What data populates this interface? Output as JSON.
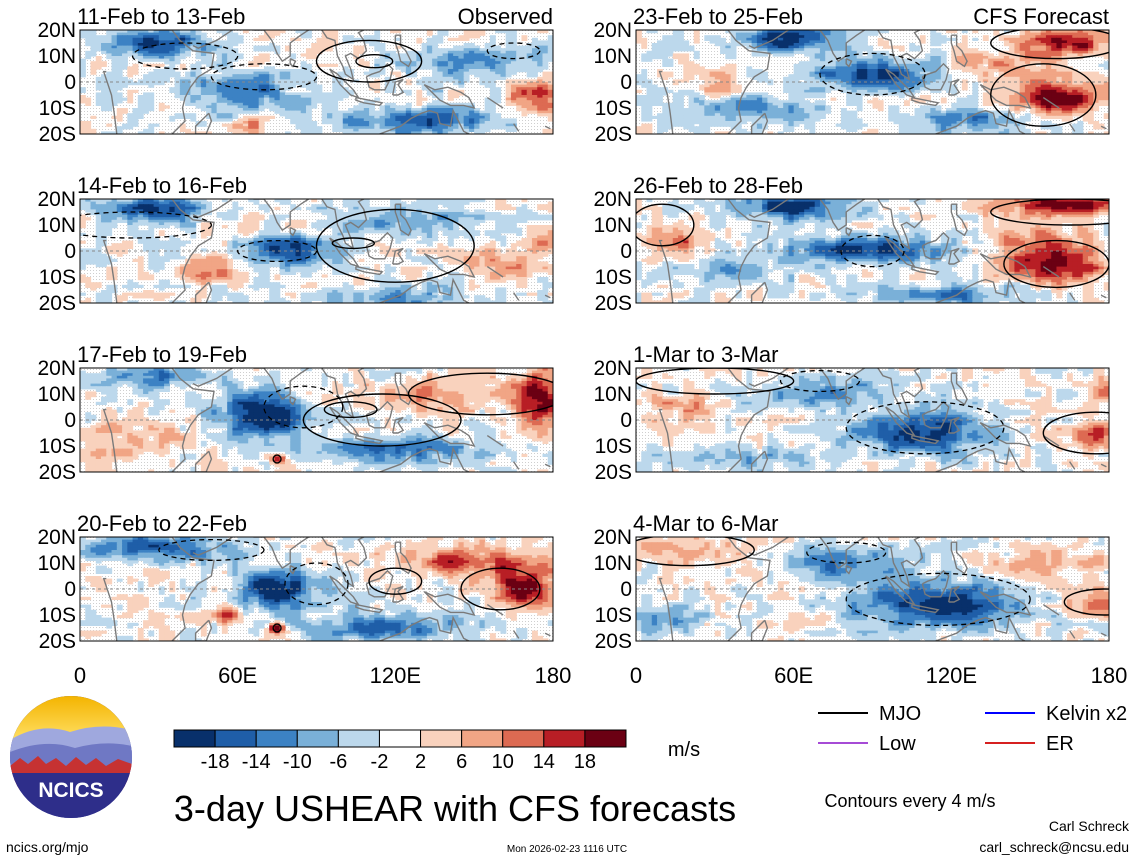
{
  "chart_data": {
    "type": "heatmap",
    "title": "3-day USHEAR with CFS forecasts",
    "variable": "USHEAR",
    "units": "m/s",
    "lon_range": [
      0,
      180
    ],
    "lat_range": [
      -20,
      20
    ],
    "x_ticks": [
      "0",
      "60E",
      "120E",
      "180"
    ],
    "y_ticks": [
      "20N",
      "10N",
      "0",
      "10S",
      "20S"
    ],
    "colorbar": {
      "levels": [
        "-18",
        "-14",
        "-10",
        "-6",
        "-2",
        "2",
        "6",
        "10",
        "14",
        "18"
      ],
      "colors": [
        "#08306b",
        "#1f5ea8",
        "#3c82c4",
        "#7ab0d8",
        "#bcd8ec",
        "#ffffff",
        "#f9d2bd",
        "#f1a585",
        "#dd6a52",
        "#b81e25",
        "#6b0013"
      ]
    },
    "columns": [
      {
        "label": "Observed",
        "panels": [
          {
            "period": "11-Feb to 13-Feb",
            "seed": 11,
            "anomalies": [
              [
                30,
                15,
                -1.4,
                18,
                5
              ],
              [
                60,
                -3,
                -0.9,
                25,
                8
              ],
              [
                130,
                -15,
                -1.1,
                30,
                5
              ],
              [
                175,
                -5,
                1.3,
                10,
                6
              ],
              [
                65,
                -17,
                0.9,
                6,
                3
              ],
              [
                150,
                8,
                -0.7,
                30,
                7
              ]
            ],
            "mjo": [
              [
                110,
                8,
                20,
                8
              ],
              [
                112,
                8,
                7,
                2.5
              ]
            ],
            "dashed": [
              [
                70,
                2,
                20,
                5
              ],
              [
                40,
                10,
                20,
                5
              ],
              [
                165,
                12,
                10,
                3
              ]
            ]
          },
          {
            "period": "14-Feb to 16-Feb",
            "seed": 17,
            "anomalies": [
              [
                30,
                16,
                -1.2,
                20,
                5
              ],
              [
                80,
                0,
                -1.3,
                15,
                6
              ],
              [
                50,
                -7,
                0.9,
                10,
                5
              ],
              [
                125,
                12,
                -0.8,
                25,
                6
              ],
              [
                175,
                3,
                0.7,
                8,
                5
              ],
              [
                160,
                -5,
                0.6,
                15,
                5
              ],
              [
                120,
                -18,
                -0.7,
                30,
                4
              ]
            ],
            "mjo": [
              [
                120,
                2,
                30,
                14
              ],
              [
                104,
                3,
                8,
                2
              ]
            ],
            "dashed": [
              [
                75,
                0,
                15,
                4
              ],
              [
                20,
                10,
                30,
                5
              ]
            ]
          },
          {
            "period": "17-Feb to 19-Feb",
            "seed": 23,
            "anomalies": [
              [
                70,
                2,
                -1.9,
                15,
                8
              ],
              [
                30,
                17,
                -1.0,
                20,
                4
              ],
              [
                175,
                8,
                1.4,
                8,
                12
              ],
              [
                120,
                -12,
                -0.9,
                35,
                5
              ],
              [
                140,
                10,
                0.7,
                30,
                6
              ],
              [
                75,
                -15,
                1.6,
                3,
                2
              ],
              [
                20,
                -8,
                0.5,
                20,
                7
              ]
            ],
            "mjo": [
              [
                155,
                10,
                30,
                8
              ],
              [
                115,
                0,
                30,
                10
              ],
              [
                103,
                4,
                10,
                3
              ],
              [
                75,
                -15,
                1.5,
                1.5
              ]
            ],
            "dashed": [
              [
                85,
                5,
                15,
                8
              ]
            ]
          },
          {
            "period": "20-Feb to 22-Feb",
            "seed": 31,
            "anomalies": [
              [
                75,
                0,
                -1.6,
                15,
                8
              ],
              [
                30,
                16,
                -1.2,
                25,
                5
              ],
              [
                170,
                0,
                1.5,
                12,
                6
              ],
              [
                150,
                10,
                1.0,
                25,
                6
              ],
              [
                120,
                -15,
                -1.0,
                30,
                5
              ],
              [
                55,
                -10,
                1.1,
                7,
                3
              ],
              [
                75,
                -15,
                1.6,
                3,
                2
              ]
            ],
            "mjo": [
              [
                160,
                0,
                15,
                8
              ],
              [
                120,
                3,
                10,
                5
              ],
              [
                75,
                -15,
                1.5,
                1.5
              ]
            ],
            "dashed": [
              [
                90,
                2,
                12,
                8
              ],
              [
                50,
                15,
                20,
                4
              ]
            ]
          }
        ]
      },
      {
        "label": "CFS Forecast",
        "panels": [
          {
            "period": "23-Feb to 25-Feb",
            "seed": 41,
            "anomalies": [
              [
                60,
                17,
                -1.7,
                15,
                5
              ],
              [
                90,
                3,
                -1.3,
                25,
                6
              ],
              [
                160,
                -6,
                1.6,
                18,
                6
              ],
              [
                165,
                15,
                1.3,
                15,
                5
              ],
              [
                40,
                -10,
                -0.8,
                30,
                6
              ],
              [
                125,
                -15,
                -0.8,
                25,
                5
              ],
              [
                30,
                -2,
                0.6,
                10,
                5
              ],
              [
                140,
                8,
                0.6,
                15,
                6
              ]
            ],
            "mjo": [
              [
                155,
                -5,
                20,
                12
              ],
              [
                160,
                15,
                25,
                6
              ]
            ],
            "dashed": [
              [
                90,
                3,
                20,
                8
              ]
            ]
          },
          {
            "period": "26-Feb to 28-Feb",
            "seed": 47,
            "anomalies": [
              [
                60,
                17,
                -1.5,
                20,
                5
              ],
              [
                90,
                0,
                -1.3,
                30,
                5
              ],
              [
                160,
                -5,
                1.5,
                18,
                7
              ],
              [
                165,
                18,
                1.6,
                20,
                4
              ],
              [
                15,
                5,
                0.9,
                10,
                6
              ],
              [
                150,
                5,
                0.5,
                20,
                8
              ],
              [
                120,
                -17,
                -0.8,
                30,
                4
              ],
              [
                40,
                -8,
                -0.6,
                20,
                5
              ]
            ],
            "mjo": [
              [
                160,
                -5,
                20,
                9
              ],
              [
                165,
                15,
                30,
                5
              ],
              [
                10,
                10,
                12,
                8
              ]
            ],
            "dashed": [
              [
                90,
                0,
                12,
                6
              ]
            ]
          },
          {
            "period": "1-Mar to 3-Mar",
            "seed": 53,
            "anomalies": [
              [
                110,
                -5,
                -1.4,
                25,
                8
              ],
              [
                70,
                10,
                -0.9,
                25,
                6
              ],
              [
                175,
                -5,
                1.2,
                10,
                5
              ],
              [
                178,
                12,
                1.0,
                5,
                5
              ],
              [
                40,
                -15,
                -0.6,
                25,
                4
              ],
              [
                20,
                5,
                0.5,
                15,
                6
              ]
            ],
            "mjo": [
              [
                175,
                -5,
                20,
                8
              ],
              [
                30,
                15,
                30,
                5
              ]
            ],
            "dashed": [
              [
                110,
                -3,
                30,
                10
              ],
              [
                70,
                15,
                15,
                4
              ]
            ]
          },
          {
            "period": "4-Mar to 6-Mar",
            "seed": 59,
            "anomalies": [
              [
                115,
                -6,
                -1.6,
                30,
                8
              ],
              [
                80,
                10,
                -0.9,
                25,
                7
              ],
              [
                175,
                -5,
                0.9,
                10,
                5
              ],
              [
                20,
                15,
                0.6,
                20,
                5
              ],
              [
                10,
                -12,
                -0.6,
                15,
                5
              ],
              [
                160,
                10,
                0.5,
                20,
                6
              ]
            ],
            "mjo": [
              [
                178,
                -5,
                15,
                5
              ],
              [
                20,
                15,
                25,
                6
              ]
            ],
            "dashed": [
              [
                115,
                -4,
                35,
                10
              ],
              [
                80,
                14,
                15,
                4
              ]
            ]
          }
        ]
      }
    ]
  },
  "logo": {
    "text": "NCICS"
  },
  "legend": {
    "entries": [
      {
        "label": "MJO",
        "color": "#000000"
      },
      {
        "label": "Kelvin x2",
        "color": "#0000ff"
      },
      {
        "label": "Low",
        "color": "#a64bd6"
      },
      {
        "label": "ER",
        "color": "#d62020"
      }
    ],
    "note": "Contours every 4 m/s"
  },
  "footer": {
    "left": "ncics.org/mjo",
    "center": "Mon 2026-02-23 1116 UTC",
    "author": "Carl Schreck",
    "email": "carl_schreck@ncsu.edu"
  }
}
